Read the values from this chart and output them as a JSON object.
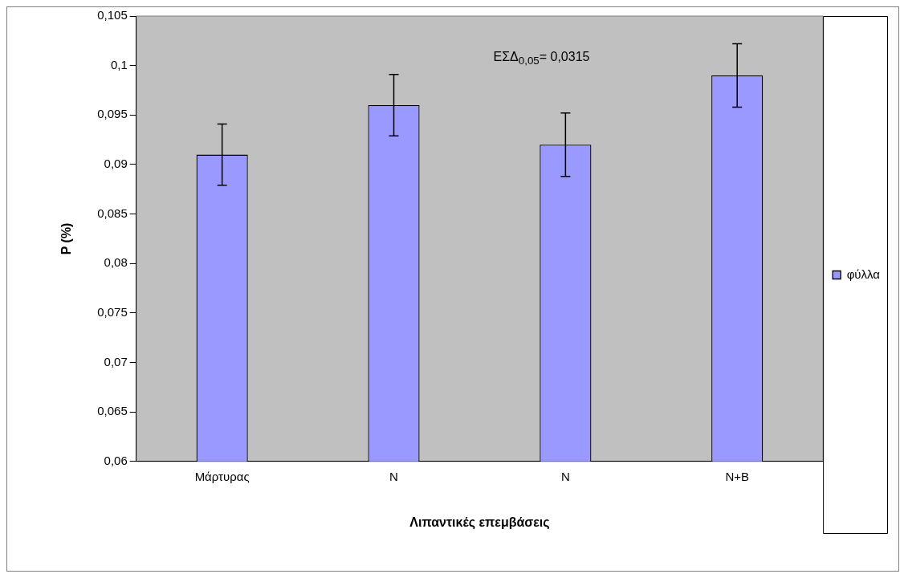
{
  "chart_data": {
    "type": "bar",
    "xlabel": "Λιπαντικές επεμβάσεις",
    "ylabel": "P (%)",
    "categories": [
      "Μάρτυρας",
      "N",
      "N",
      "N+B"
    ],
    "series": [
      {
        "name": "φύλλα",
        "color": "#9999ff",
        "values": [
          0.091,
          0.096,
          0.092,
          0.099
        ],
        "errors": [
          0.0031,
          0.0031,
          0.0032,
          0.0032
        ]
      }
    ],
    "ylim": [
      0.06,
      0.105
    ],
    "yticks": [
      {
        "value": 0.06,
        "label": "0,06"
      },
      {
        "value": 0.065,
        "label": "0,065"
      },
      {
        "value": 0.07,
        "label": "0,07"
      },
      {
        "value": 0.075,
        "label": "0,075"
      },
      {
        "value": 0.08,
        "label": "0,08"
      },
      {
        "value": 0.085,
        "label": "0,085"
      },
      {
        "value": 0.09,
        "label": "0,09"
      },
      {
        "value": 0.095,
        "label": "0,095"
      },
      {
        "value": 0.1,
        "label": "0,1"
      },
      {
        "value": 0.105,
        "label": "0,105"
      }
    ],
    "annotations": [
      "ΕΣΔ$_{0,05}$= 0,0315"
    ],
    "legend": "right",
    "grid": false
  }
}
